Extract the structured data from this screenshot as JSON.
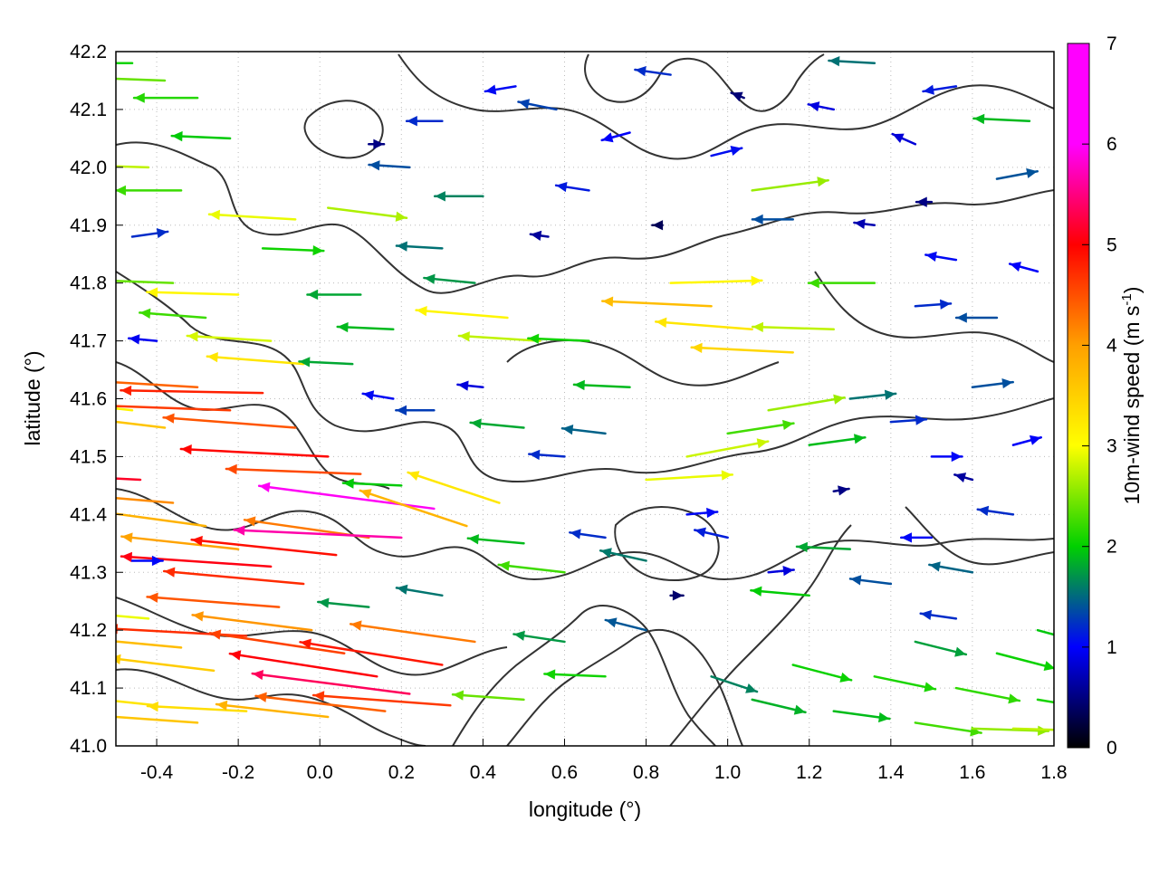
{
  "chart_data": {
    "type": "quiver",
    "title": "",
    "xlabel": "longitude (°)",
    "ylabel": "latitude (°)",
    "colorbar_label": "10m-wind speed (m s⁻¹)",
    "colorbar_label_main": "10m-wind speed (m s",
    "colorbar_label_sup": "-1",
    "colorbar_label_end": ")",
    "xlim": [
      -0.5,
      1.8
    ],
    "ylim": [
      41.0,
      42.2
    ],
    "clim": [
      0,
      7
    ],
    "x_ticks": [
      -0.4,
      -0.2,
      0.0,
      0.2,
      0.4,
      0.6,
      0.8,
      1.0,
      1.2,
      1.4,
      1.6,
      1.8
    ],
    "x_tick_labels": [
      "-0.4",
      "-0.2",
      "0.0",
      "0.2",
      "0.4",
      "0.6",
      "0.8",
      "1.0",
      "1.2",
      "1.4",
      "1.6",
      "1.8"
    ],
    "y_ticks": [
      41.0,
      41.1,
      41.2,
      41.3,
      41.4,
      41.5,
      41.6,
      41.7,
      41.8,
      41.9,
      42.0,
      42.1,
      42.2
    ],
    "y_tick_labels": [
      "41.0",
      "41.1",
      "41.2",
      "41.3",
      "41.4",
      "41.5",
      "41.6",
      "41.7",
      "41.8",
      "41.9",
      "42.0",
      "42.1",
      "42.2"
    ],
    "colorbar_ticks": [
      0,
      1,
      2,
      3,
      4,
      5,
      6,
      7
    ],
    "colorbar_tick_labels": [
      "0",
      "1",
      "2",
      "3",
      "4",
      "5",
      "6",
      "7"
    ],
    "colormap": [
      "#000000",
      "#0000ff",
      "#00d000",
      "#ffff00",
      "#ffa000",
      "#ff0000",
      "#ff00ff"
    ],
    "grid": true,
    "contour_color": "#333333",
    "vectors": [
      {
        "lon": -0.46,
        "lat": 41.58,
        "u": -3.6,
        "v": 0.4
      },
      {
        "lon": -0.38,
        "lat": 41.55,
        "u": -4.2,
        "v": 0.5
      },
      {
        "lon": -0.3,
        "lat": 41.62,
        "u": -5.1,
        "v": 0.3
      },
      {
        "lon": -0.22,
        "lat": 41.58,
        "u": -5.4,
        "v": 0.2
      },
      {
        "lon": -0.14,
        "lat": 41.61,
        "u": -5.6,
        "v": 0.1
      },
      {
        "lon": -0.06,
        "lat": 41.55,
        "u": -5.2,
        "v": 0.4
      },
      {
        "lon": 0.02,
        "lat": 41.5,
        "u": -5.8,
        "v": 0.3
      },
      {
        "lon": 0.1,
        "lat": 41.47,
        "u": -5.3,
        "v": 0.2
      },
      {
        "lon": -0.44,
        "lat": 41.46,
        "u": -6.0,
        "v": 0.3
      },
      {
        "lon": -0.36,
        "lat": 41.42,
        "u": -4.8,
        "v": 0.4
      },
      {
        "lon": -0.28,
        "lat": 41.38,
        "u": -4.4,
        "v": 0.6
      },
      {
        "lon": -0.2,
        "lat": 41.34,
        "u": -4.6,
        "v": 0.5
      },
      {
        "lon": -0.12,
        "lat": 41.31,
        "u": -5.9,
        "v": 0.4
      },
      {
        "lon": -0.04,
        "lat": 41.28,
        "u": -5.5,
        "v": 0.5
      },
      {
        "lon": 0.04,
        "lat": 41.33,
        "u": -5.7,
        "v": 0.6
      },
      {
        "lon": 0.12,
        "lat": 41.36,
        "u": -4.9,
        "v": 0.7
      },
      {
        "lon": 0.2,
        "lat": 41.36,
        "u": -6.6,
        "v": 0.3
      },
      {
        "lon": 0.28,
        "lat": 41.41,
        "u": -6.9,
        "v": 0.9
      },
      {
        "lon": 0.36,
        "lat": 41.38,
        "u": -4.2,
        "v": 1.4
      },
      {
        "lon": 0.44,
        "lat": 41.42,
        "u": -3.6,
        "v": 1.2
      },
      {
        "lon": -0.42,
        "lat": 41.22,
        "u": -3.4,
        "v": 0.3
      },
      {
        "lon": -0.34,
        "lat": 41.17,
        "u": -4.3,
        "v": 0.4
      },
      {
        "lon": -0.26,
        "lat": 41.13,
        "u": -4.1,
        "v": 0.5
      },
      {
        "lon": -0.18,
        "lat": 41.19,
        "u": -5.5,
        "v": 0.3
      },
      {
        "lon": -0.1,
        "lat": 41.24,
        "u": -5.2,
        "v": 0.4
      },
      {
        "lon": -0.02,
        "lat": 41.2,
        "u": -4.7,
        "v": 0.6
      },
      {
        "lon": 0.06,
        "lat": 41.16,
        "u": -5.3,
        "v": 0.8
      },
      {
        "lon": 0.14,
        "lat": 41.12,
        "u": -5.8,
        "v": 0.9
      },
      {
        "lon": 0.22,
        "lat": 41.09,
        "u": -6.2,
        "v": 0.8
      },
      {
        "lon": 0.3,
        "lat": 41.14,
        "u": -5.6,
        "v": 0.9
      },
      {
        "lon": 0.38,
        "lat": 41.18,
        "u": -4.9,
        "v": 0.7
      },
      {
        "lon": -0.4,
        "lat": 41.07,
        "u": -3.8,
        "v": 0.4
      },
      {
        "lon": -0.3,
        "lat": 41.04,
        "u": -4.2,
        "v": 0.3
      },
      {
        "lon": -0.18,
        "lat": 41.06,
        "u": -3.9,
        "v": 0.2
      },
      {
        "lon": 0.02,
        "lat": 41.05,
        "u": -4.4,
        "v": 0.5
      },
      {
        "lon": 0.16,
        "lat": 41.06,
        "u": -5.1,
        "v": 0.6
      },
      {
        "lon": 0.32,
        "lat": 41.07,
        "u": -5.4,
        "v": 0.4
      },
      {
        "lon": -0.46,
        "lat": 42.18,
        "u": -2.4,
        "v": 0.0
      },
      {
        "lon": -0.38,
        "lat": 42.15,
        "u": -2.8,
        "v": 0.1
      },
      {
        "lon": -0.3,
        "lat": 42.12,
        "u": -2.5,
        "v": 0.0
      },
      {
        "lon": -0.22,
        "lat": 42.05,
        "u": -2.3,
        "v": 0.1
      },
      {
        "lon": -0.42,
        "lat": 42.0,
        "u": -3.2,
        "v": 0.1
      },
      {
        "lon": -0.34,
        "lat": 41.96,
        "u": -2.6,
        "v": 0.0
      },
      {
        "lon": -0.06,
        "lat": 41.91,
        "u": -3.4,
        "v": 0.2
      },
      {
        "lon": 0.02,
        "lat": 41.93,
        "u": 3.1,
        "v": -0.4
      },
      {
        "lon": -0.14,
        "lat": 41.86,
        "u": 2.4,
        "v": -0.1
      },
      {
        "lon": -0.36,
        "lat": 41.8,
        "u": -2.8,
        "v": 0.1
      },
      {
        "lon": -0.28,
        "lat": 41.74,
        "u": -2.6,
        "v": 0.2
      },
      {
        "lon": -0.2,
        "lat": 41.78,
        "u": -3.6,
        "v": 0.1
      },
      {
        "lon": -0.12,
        "lat": 41.7,
        "u": -3.3,
        "v": 0.2
      },
      {
        "lon": -0.04,
        "lat": 41.66,
        "u": -3.8,
        "v": 0.3
      },
      {
        "lon": 0.1,
        "lat": 41.78,
        "u": -2.1,
        "v": 0.0
      },
      {
        "lon": 0.18,
        "lat": 41.72,
        "u": -2.2,
        "v": 0.1
      },
      {
        "lon": 0.3,
        "lat": 41.86,
        "u": -1.8,
        "v": 0.1
      },
      {
        "lon": 0.38,
        "lat": 41.8,
        "u": -2.0,
        "v": 0.2
      },
      {
        "lon": 0.46,
        "lat": 41.74,
        "u": -3.6,
        "v": 0.3
      },
      {
        "lon": 0.54,
        "lat": 41.7,
        "u": -3.2,
        "v": 0.2
      },
      {
        "lon": 0.3,
        "lat": 42.08,
        "u": -1.4,
        "v": 0.0
      },
      {
        "lon": 0.12,
        "lat": 42.04,
        "u": 0.6,
        "v": 0.0
      },
      {
        "lon": 0.22,
        "lat": 42.0,
        "u": -1.6,
        "v": 0.1
      },
      {
        "lon": 0.4,
        "lat": 41.95,
        "u": -1.9,
        "v": 0.0
      },
      {
        "lon": 0.48,
        "lat": 42.14,
        "u": -1.2,
        "v": -0.2
      },
      {
        "lon": 0.58,
        "lat": 42.1,
        "u": -1.5,
        "v": 0.3
      },
      {
        "lon": 0.66,
        "lat": 41.96,
        "u": -1.3,
        "v": 0.2
      },
      {
        "lon": 0.76,
        "lat": 42.06,
        "u": -1.1,
        "v": -0.3
      },
      {
        "lon": 0.86,
        "lat": 42.16,
        "u": -1.4,
        "v": 0.2
      },
      {
        "lon": 0.96,
        "lat": 42.02,
        "u": 1.2,
        "v": 0.3
      },
      {
        "lon": 1.06,
        "lat": 41.96,
        "u": 3.0,
        "v": 0.4
      },
      {
        "lon": 1.16,
        "lat": 41.91,
        "u": -1.6,
        "v": 0.0
      },
      {
        "lon": 1.26,
        "lat": 42.1,
        "u": -1.0,
        "v": 0.2
      },
      {
        "lon": 1.36,
        "lat": 42.18,
        "u": -1.8,
        "v": 0.1
      },
      {
        "lon": 1.46,
        "lat": 42.04,
        "u": -0.9,
        "v": 0.4
      },
      {
        "lon": 1.56,
        "lat": 42.14,
        "u": -1.3,
        "v": -0.2
      },
      {
        "lon": 1.66,
        "lat": 41.98,
        "u": 1.6,
        "v": 0.3
      },
      {
        "lon": 1.74,
        "lat": 42.08,
        "u": -2.2,
        "v": 0.1
      },
      {
        "lon": 0.86,
        "lat": 41.8,
        "u": 3.6,
        "v": 0.1
      },
      {
        "lon": 0.96,
        "lat": 41.76,
        "u": -4.3,
        "v": 0.2
      },
      {
        "lon": 1.06,
        "lat": 41.72,
        "u": -3.8,
        "v": 0.3
      },
      {
        "lon": 1.16,
        "lat": 41.68,
        "u": -4.0,
        "v": 0.2
      },
      {
        "lon": 1.26,
        "lat": 41.72,
        "u": -3.2,
        "v": 0.1
      },
      {
        "lon": 1.36,
        "lat": 41.8,
        "u": -2.6,
        "v": 0.0
      },
      {
        "lon": 1.46,
        "lat": 41.76,
        "u": 1.4,
        "v": 0.1
      },
      {
        "lon": 1.56,
        "lat": 41.84,
        "u": -1.2,
        "v": 0.2
      },
      {
        "lon": 1.66,
        "lat": 41.74,
        "u": -1.6,
        "v": 0.0
      },
      {
        "lon": 1.76,
        "lat": 41.82,
        "u": -1.1,
        "v": 0.3
      },
      {
        "lon": 0.66,
        "lat": 41.7,
        "u": -2.4,
        "v": 0.1
      },
      {
        "lon": 0.76,
        "lat": 41.62,
        "u": -2.2,
        "v": 0.1
      },
      {
        "lon": 0.7,
        "lat": 41.54,
        "u": -1.7,
        "v": 0.2
      },
      {
        "lon": 0.6,
        "lat": 41.5,
        "u": -1.4,
        "v": 0.1
      },
      {
        "lon": 0.5,
        "lat": 41.55,
        "u": -2.1,
        "v": 0.2
      },
      {
        "lon": 0.8,
        "lat": 41.46,
        "u": 3.4,
        "v": 0.2
      },
      {
        "lon": 0.9,
        "lat": 41.5,
        "u": 3.2,
        "v": 0.6
      },
      {
        "lon": 1.0,
        "lat": 41.54,
        "u": 2.6,
        "v": 0.4
      },
      {
        "lon": 1.1,
        "lat": 41.58,
        "u": 3.0,
        "v": 0.5
      },
      {
        "lon": 1.2,
        "lat": 41.52,
        "u": 2.2,
        "v": 0.3
      },
      {
        "lon": 1.3,
        "lat": 41.6,
        "u": 1.8,
        "v": 0.2
      },
      {
        "lon": 1.4,
        "lat": 41.56,
        "u": 1.4,
        "v": 0.1
      },
      {
        "lon": 1.5,
        "lat": 41.5,
        "u": 1.2,
        "v": 0.0
      },
      {
        "lon": 1.6,
        "lat": 41.62,
        "u": 1.6,
        "v": 0.2
      },
      {
        "lon": 1.7,
        "lat": 41.52,
        "u": 1.1,
        "v": 0.3
      },
      {
        "lon": 0.5,
        "lat": 41.35,
        "u": -2.2,
        "v": 0.2
      },
      {
        "lon": 0.6,
        "lat": 41.3,
        "u": -2.6,
        "v": 0.3
      },
      {
        "lon": 0.7,
        "lat": 41.36,
        "u": -1.4,
        "v": 0.2
      },
      {
        "lon": 0.8,
        "lat": 41.32,
        "u": -1.8,
        "v": 0.4
      },
      {
        "lon": 0.9,
        "lat": 41.4,
        "u": 1.2,
        "v": 0.1
      },
      {
        "lon": 1.0,
        "lat": 41.36,
        "u": -1.3,
        "v": 0.3
      },
      {
        "lon": 1.1,
        "lat": 41.3,
        "u": 1.0,
        "v": 0.1
      },
      {
        "lon": 1.2,
        "lat": 41.26,
        "u": -2.3,
        "v": 0.2
      },
      {
        "lon": 1.3,
        "lat": 41.34,
        "u": -2.1,
        "v": 0.1
      },
      {
        "lon": 1.4,
        "lat": 41.28,
        "u": -1.6,
        "v": 0.2
      },
      {
        "lon": 1.5,
        "lat": 41.36,
        "u": -1.2,
        "v": 0.0
      },
      {
        "lon": 1.6,
        "lat": 41.3,
        "u": -1.7,
        "v": 0.3
      },
      {
        "lon": 1.7,
        "lat": 41.4,
        "u": -1.4,
        "v": 0.2
      },
      {
        "lon": 0.6,
        "lat": 41.18,
        "u": -2.0,
        "v": 0.3
      },
      {
        "lon": 0.7,
        "lat": 41.12,
        "u": -2.4,
        "v": 0.1
      },
      {
        "lon": 0.8,
        "lat": 41.2,
        "u": -1.6,
        "v": 0.4
      },
      {
        "lon": 0.5,
        "lat": 41.08,
        "u": -2.8,
        "v": 0.2
      },
      {
        "lon": 0.96,
        "lat": 41.12,
        "u": 1.8,
        "v": -0.6
      },
      {
        "lon": 1.06,
        "lat": 41.08,
        "u": 2.1,
        "v": -0.5
      },
      {
        "lon": 1.16,
        "lat": 41.14,
        "u": 2.3,
        "v": -0.6
      },
      {
        "lon": 1.26,
        "lat": 41.06,
        "u": 2.2,
        "v": -0.3
      },
      {
        "lon": 1.36,
        "lat": 41.12,
        "u": 2.4,
        "v": -0.5
      },
      {
        "lon": 1.46,
        "lat": 41.04,
        "u": 2.6,
        "v": -0.4
      },
      {
        "lon": 1.56,
        "lat": 41.1,
        "u": 2.5,
        "v": -0.5
      },
      {
        "lon": 1.66,
        "lat": 41.16,
        "u": 2.3,
        "v": -0.6
      },
      {
        "lon": 1.76,
        "lat": 41.08,
        "u": 2.4,
        "v": -0.4
      },
      {
        "lon": 1.6,
        "lat": 41.03,
        "u": 3.0,
        "v": -0.1
      },
      {
        "lon": 1.7,
        "lat": 41.03,
        "u": 3.2,
        "v": -0.1
      },
      {
        "lon": 1.46,
        "lat": 41.18,
        "u": 2.0,
        "v": -0.5
      },
      {
        "lon": 1.56,
        "lat": 41.22,
        "u": -1.4,
        "v": 0.2
      },
      {
        "lon": 1.76,
        "lat": 41.2,
        "u": 2.2,
        "v": -0.6
      },
      {
        "lon": 0.4,
        "lat": 41.62,
        "u": -1.0,
        "v": 0.1
      },
      {
        "lon": 0.28,
        "lat": 41.58,
        "u": -1.5,
        "v": 0.0
      },
      {
        "lon": 0.18,
        "lat": 41.6,
        "u": -1.2,
        "v": 0.2
      },
      {
        "lon": 0.08,
        "lat": 41.66,
        "u": -2.1,
        "v": 0.1
      },
      {
        "lon": 0.2,
        "lat": 41.45,
        "u": -2.3,
        "v": 0.1
      },
      {
        "lon": 0.12,
        "lat": 41.24,
        "u": -2.0,
        "v": 0.2
      },
      {
        "lon": 0.3,
        "lat": 41.26,
        "u": -1.8,
        "v": 0.3
      },
      {
        "lon": -0.46,
        "lat": 41.88,
        "u": 1.4,
        "v": 0.2
      },
      {
        "lon": -0.4,
        "lat": 41.7,
        "u": -1.1,
        "v": 0.1
      },
      {
        "lon": -0.46,
        "lat": 41.32,
        "u": 1.2,
        "v": 0.0
      },
      {
        "lon": 1.36,
        "lat": 41.9,
        "u": -0.8,
        "v": 0.1
      },
      {
        "lon": 1.5,
        "lat": 41.94,
        "u": -0.6,
        "v": 0.0
      },
      {
        "lon": 1.04,
        "lat": 42.12,
        "u": -0.5,
        "v": 0.2
      },
      {
        "lon": 0.56,
        "lat": 41.88,
        "u": -0.7,
        "v": 0.1
      },
      {
        "lon": 0.84,
        "lat": 41.9,
        "u": -0.4,
        "v": 0.0
      },
      {
        "lon": 1.26,
        "lat": 41.44,
        "u": 0.6,
        "v": 0.1
      },
      {
        "lon": 1.6,
        "lat": 41.46,
        "u": -0.7,
        "v": 0.2
      },
      {
        "lon": 0.86,
        "lat": 41.26,
        "u": 0.5,
        "v": 0.0
      }
    ]
  }
}
